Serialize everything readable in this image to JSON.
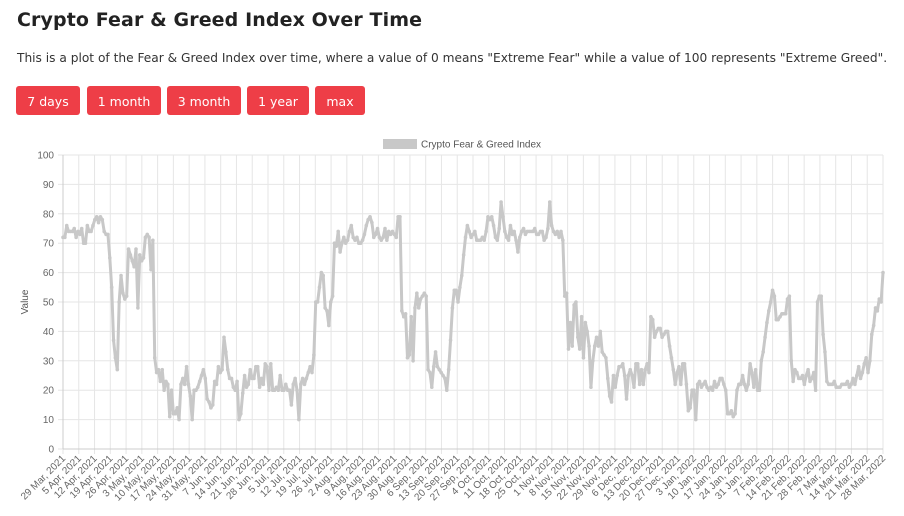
{
  "header": {
    "title": "Crypto Fear & Greed Index Over Time",
    "description": "This is a plot of the Fear & Greed Index over time, where a value of 0 means \"Extreme Fear\" while a value of 100 represents \"Extreme Greed\"."
  },
  "buttons": [
    {
      "label": "7 days"
    },
    {
      "label": "1 month"
    },
    {
      "label": "3 month"
    },
    {
      "label": "1 year"
    },
    {
      "label": "max"
    }
  ],
  "chart_data": {
    "type": "line",
    "title": "",
    "xlabel": "",
    "ylabel": "Value",
    "ylim": [
      0,
      100
    ],
    "yticks": [
      0,
      10,
      20,
      30,
      40,
      50,
      60,
      70,
      80,
      90,
      100
    ],
    "grid": true,
    "legend_position": "top-center",
    "series_color": "#c8c8c8",
    "x_start": "2021-03-29",
    "x_end": "2022-03-28",
    "x_tick_labels": [
      "29 Mar, 2021",
      "5 Apr, 2021",
      "12 Apr, 2021",
      "19 Apr, 2021",
      "26 Apr, 2021",
      "3 May, 2021",
      "10 May, 2021",
      "17 May, 2021",
      "24 May, 2021",
      "31 May, 2021",
      "7 Jun, 2021",
      "14 Jun, 2021",
      "21 Jun, 2021",
      "28 Jun, 2021",
      "5 Jul, 2021",
      "12 Jul, 2021",
      "19 Jul, 2021",
      "26 Jul, 2021",
      "2 Aug, 2021",
      "9 Aug, 2021",
      "16 Aug, 2021",
      "23 Aug, 2021",
      "30 Aug, 2021",
      "6 Sep, 2021",
      "13 Sep, 2021",
      "20 Sep, 2021",
      "27 Sep, 2021",
      "4 Oct, 2021",
      "11 Oct, 2021",
      "18 Oct, 2021",
      "25 Oct, 2021",
      "1 Nov, 2021",
      "8 Nov, 2021",
      "15 Nov, 2021",
      "22 Nov, 2021",
      "29 Nov, 2021",
      "6 Dec, 2021",
      "13 Dec, 2021",
      "20 Dec, 2021",
      "27 Dec, 2021",
      "3 Jan, 2022",
      "10 Jan, 2022",
      "17 Jan, 2022",
      "24 Jan, 2022",
      "31 Jan, 2022",
      "7 Feb, 2022",
      "14 Feb, 2022",
      "21 Feb, 2022",
      "28 Feb, 2022",
      "7 Mar, 2022",
      "14 Mar, 2022",
      "21 Mar, 2022",
      "28 Mar, 2022"
    ],
    "series": [
      {
        "name": "Crypto Fear & Greed Index",
        "values": [
          72,
          72,
          76,
          74,
          74,
          74,
          75,
          72,
          74,
          73,
          75,
          70,
          70,
          76,
          74,
          74,
          76,
          78,
          79,
          77,
          79,
          78,
          74,
          73,
          73,
          65,
          55,
          37,
          31,
          27,
          50,
          59,
          53,
          51,
          52,
          68,
          66,
          64,
          62,
          68,
          48,
          66,
          64,
          65,
          72,
          73,
          72,
          61,
          71,
          31,
          26,
          27,
          23,
          27,
          20,
          23,
          22,
          11,
          20,
          12,
          12,
          14,
          10,
          22,
          24,
          22,
          28,
          22,
          18,
          10,
          20,
          20,
          21,
          23,
          25,
          27,
          24,
          17,
          16,
          14,
          15,
          23,
          22,
          28,
          26,
          27,
          38,
          33,
          27,
          24,
          24,
          21,
          20,
          23,
          10,
          12,
          19,
          25,
          21,
          22,
          27,
          24,
          24,
          28,
          28,
          21,
          24,
          22,
          29,
          28,
          20,
          29,
          20,
          20,
          21,
          20,
          25,
          20,
          20,
          22,
          20,
          20,
          15,
          22,
          24,
          20,
          10,
          22,
          24,
          22,
          24,
          26,
          28,
          26,
          32,
          50,
          50,
          55,
          60,
          59,
          48,
          47,
          42,
          50,
          52,
          70,
          69,
          74,
          67,
          70,
          72,
          70,
          71,
          74,
          76,
          72,
          71,
          72,
          70,
          70,
          71,
          73,
          76,
          78,
          79,
          77,
          72,
          73,
          75,
          72,
          71,
          72,
          75,
          71,
          74,
          73,
          74,
          73,
          72,
          79,
          79,
          47,
          45,
          46,
          31,
          32,
          45,
          30,
          48,
          53,
          48,
          51,
          52,
          53,
          52,
          27,
          26,
          21,
          28,
          33,
          28,
          27,
          26,
          25,
          24,
          20,
          27,
          37,
          48,
          54,
          54,
          50,
          55,
          59,
          66,
          72,
          76,
          74,
          72,
          73,
          74,
          71,
          71,
          71,
          72,
          71,
          74,
          79,
          78,
          79,
          76,
          72,
          71,
          75,
          84,
          79,
          74,
          72,
          71,
          76,
          73,
          74,
          71,
          67,
          72,
          74,
          75,
          73,
          74,
          74,
          74,
          74,
          75,
          73,
          73,
          74,
          74,
          71,
          72,
          75,
          84,
          76,
          74,
          73,
          74,
          72,
          74,
          71,
          52,
          53,
          34,
          43,
          35,
          49,
          50,
          38,
          34,
          45,
          31,
          43,
          40,
          35,
          21,
          30,
          35,
          38,
          35,
          40,
          33,
          32,
          31,
          24,
          18,
          16,
          25,
          21,
          25,
          28,
          28,
          29,
          25,
          17,
          25,
          27,
          25,
          21,
          29,
          29,
          22,
          27,
          22,
          27,
          29,
          26,
          45,
          44,
          38,
          40,
          41,
          41,
          38,
          39,
          40,
          40,
          35,
          31,
          27,
          22,
          26,
          28,
          22,
          29,
          29,
          22,
          13,
          14,
          20,
          20,
          10,
          22,
          23,
          21,
          22,
          23,
          21,
          20,
          21,
          20,
          23,
          21,
          22,
          24,
          24,
          22,
          20,
          12,
          12,
          13,
          11,
          12,
          20,
          22,
          22,
          25,
          22,
          20,
          22,
          29,
          26,
          21,
          27,
          20,
          20,
          30,
          33,
          38,
          43,
          47,
          50,
          54,
          52,
          44,
          44,
          45,
          46,
          46,
          46,
          51,
          52,
          30,
          23,
          27,
          26,
          24,
          24,
          25,
          22,
          25,
          27,
          23,
          24,
          26,
          20,
          50,
          52,
          52,
          39,
          33,
          23,
          22,
          22,
          22,
          23,
          21,
          21,
          21,
          22,
          22,
          22,
          23,
          21,
          22,
          24,
          22,
          25,
          28,
          24,
          26,
          29,
          31,
          26,
          30,
          39,
          42,
          48,
          47,
          51,
          50,
          60
        ]
      }
    ]
  }
}
